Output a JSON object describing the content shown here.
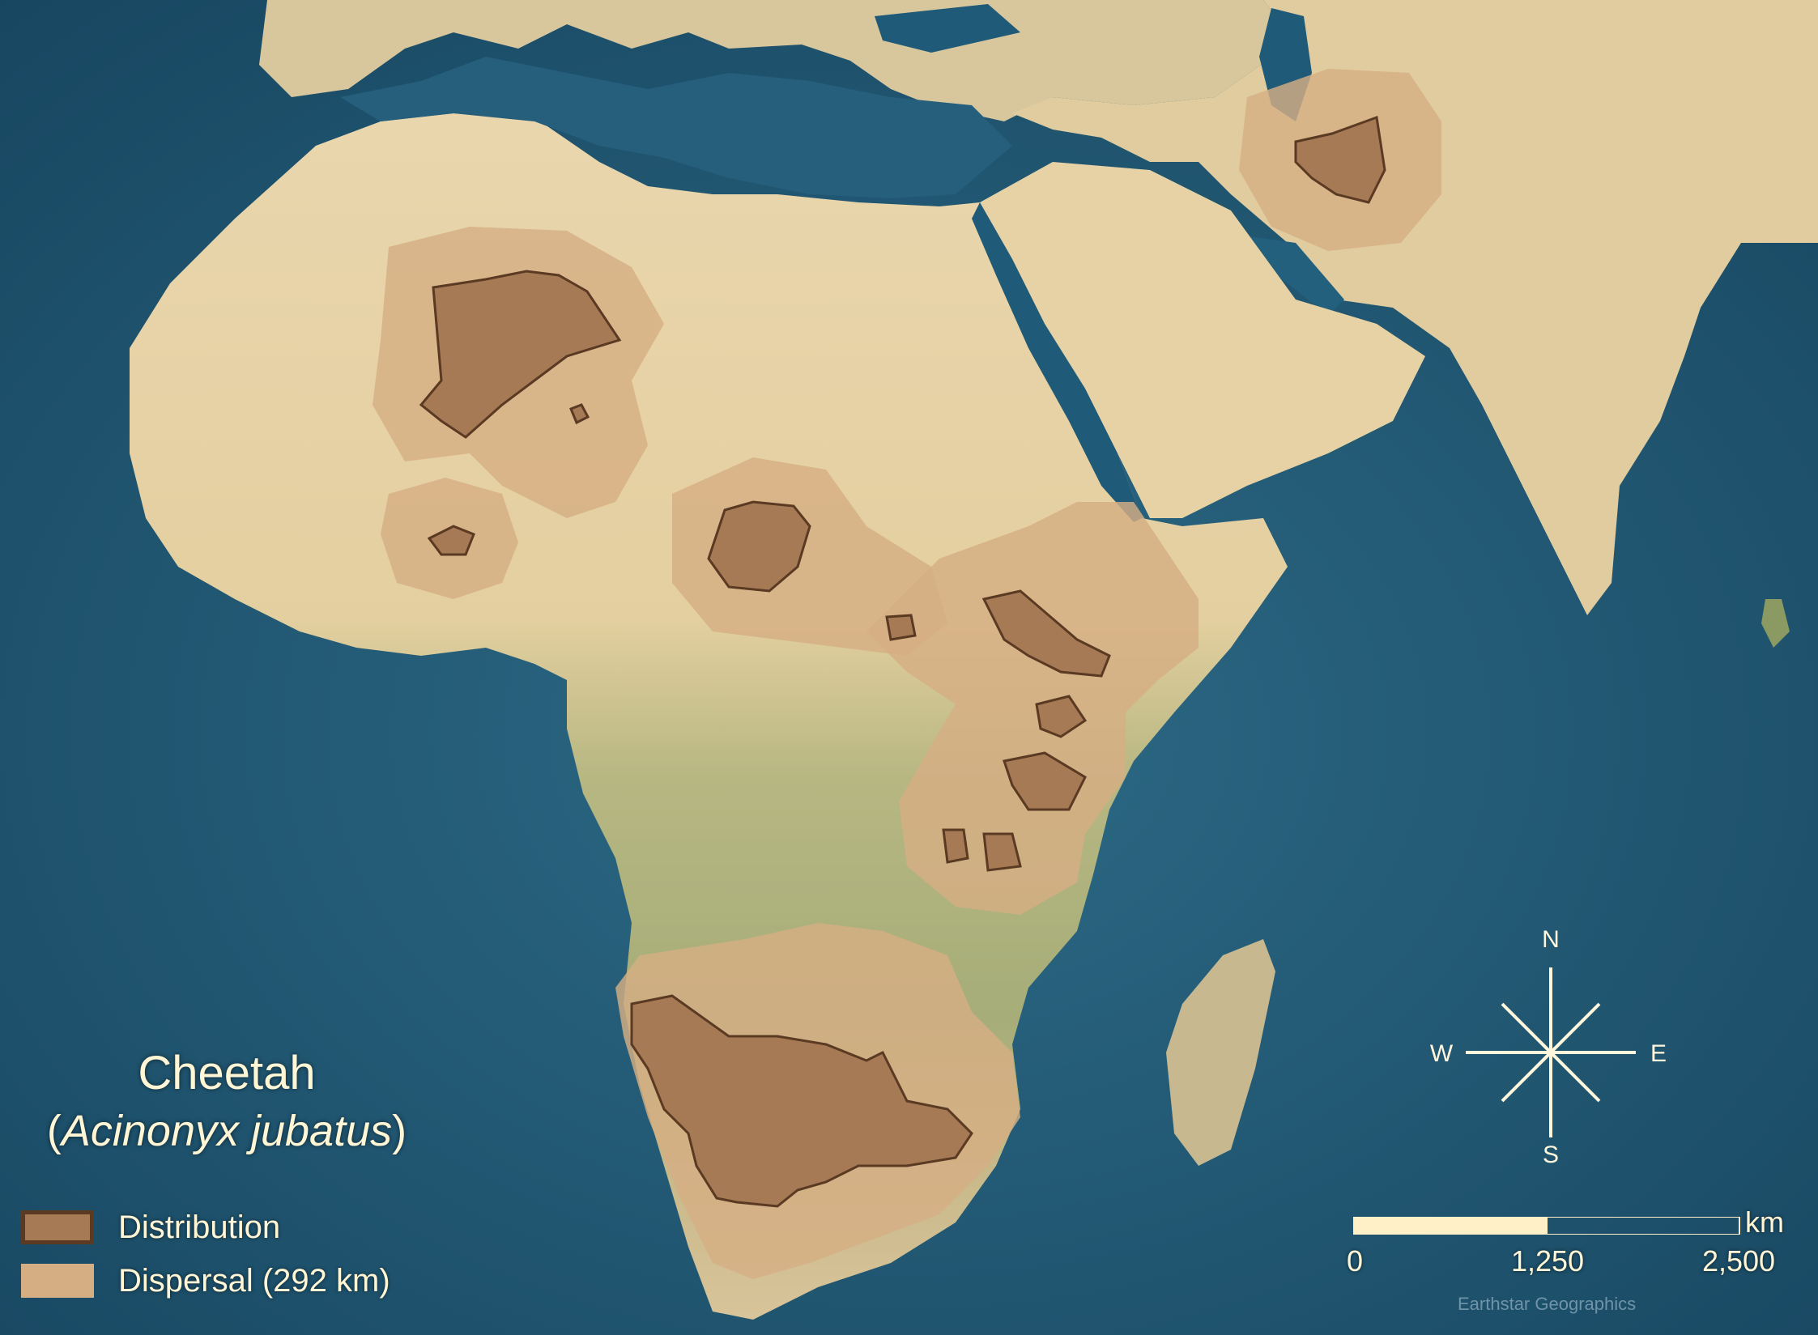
{
  "map": {
    "title": "Cheetah",
    "scientific_name_open": "(",
    "scientific_name": "Acinonyx jubatus",
    "scientific_name_close": ")",
    "colors": {
      "ocean": "#1f5572",
      "land_desert": "#e8d2a6",
      "land_green": "#a9b27a",
      "distribution_fill": "#a57a55",
      "distribution_outline": "#5a3a22",
      "dispersal_fill": "#d6ae84"
    }
  },
  "legend": {
    "items": [
      {
        "label": "Distribution",
        "type": "distribution"
      },
      {
        "label": "Dispersal (292 km)",
        "type": "dispersal"
      }
    ]
  },
  "compass": {
    "n": "N",
    "s": "S",
    "e": "E",
    "w": "W",
    "icon": "compass-rose-icon"
  },
  "scale_bar": {
    "labels": [
      "0",
      "1,250",
      "2,500"
    ],
    "unit": "km"
  },
  "credit": "Earthstar Geographics"
}
